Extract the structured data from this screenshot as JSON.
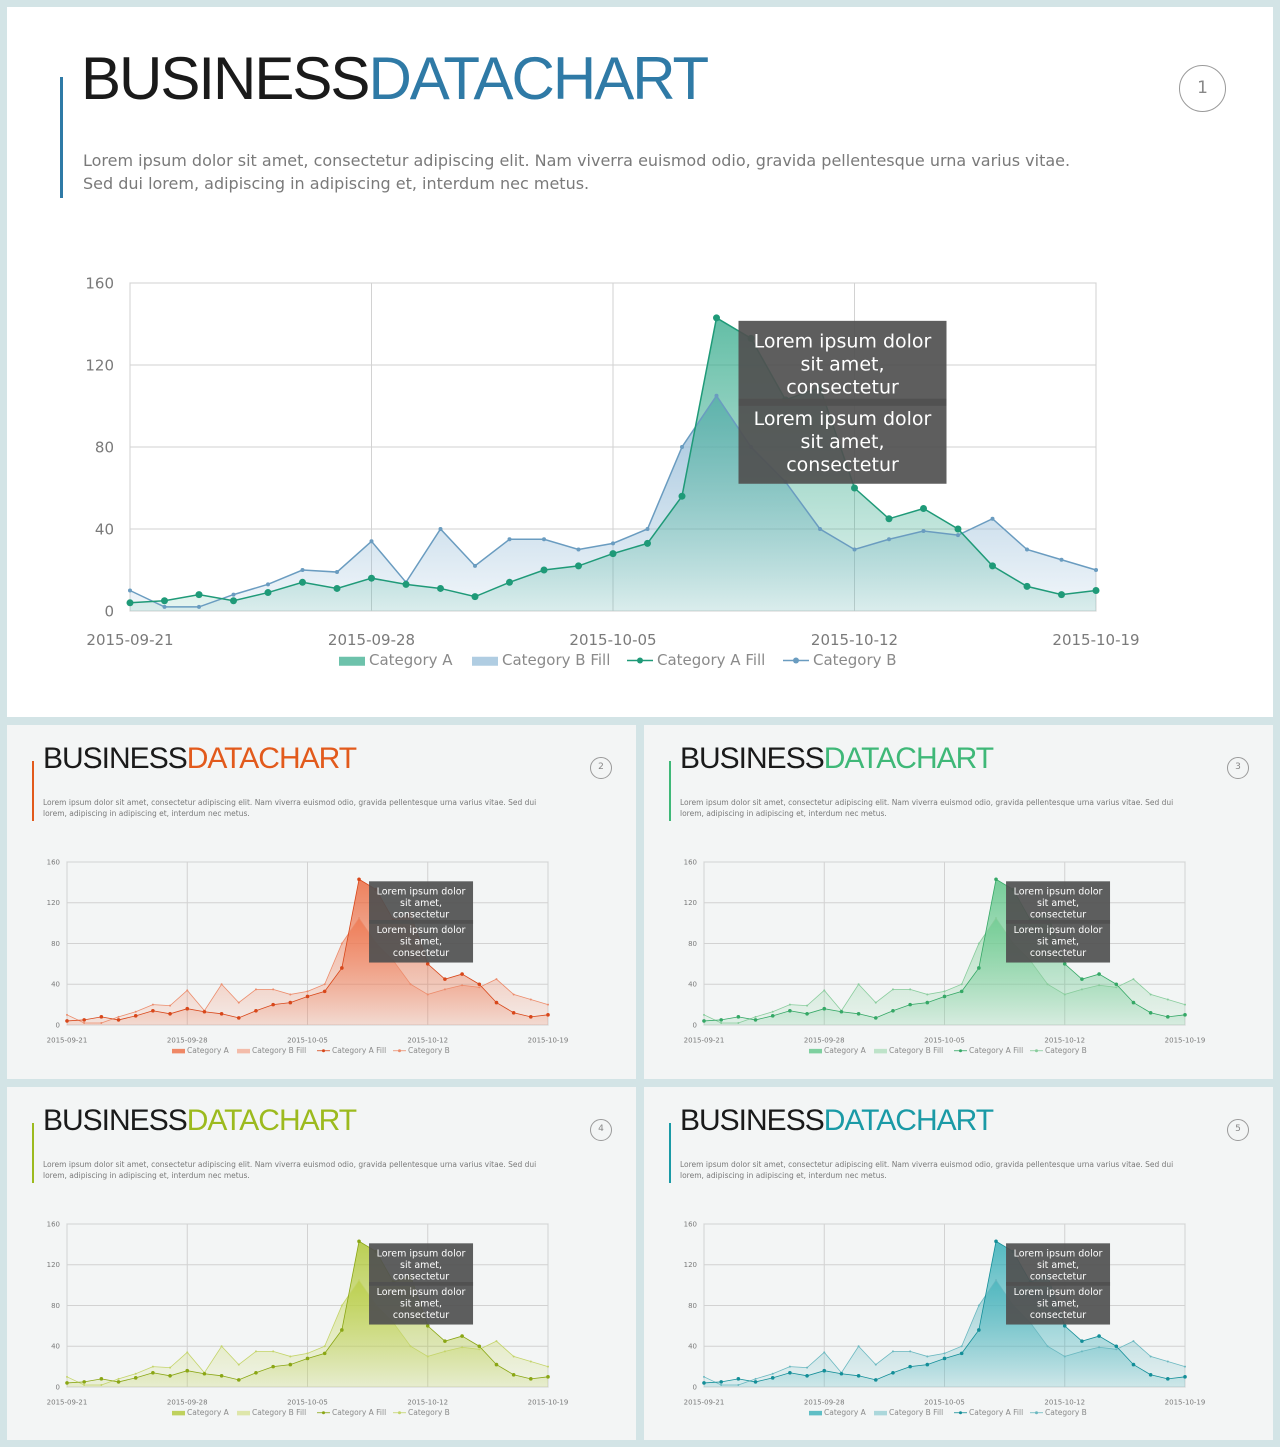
{
  "slides": [
    {
      "number": "1",
      "title_part1": "BUSINESS",
      "title_part2": "DATACHART",
      "description": "Lorem ipsum dolor sit amet, consectetur adipiscing elit. Nam viverra euismod odio, gravida pellentesque urna varius vitae. Sed dui lorem, adipiscing in adipiscing et, interdum nec metus.",
      "theme": {
        "accent": "#2f7aa6",
        "areaA": "#2fa888",
        "lineA": "#1f9a78",
        "areaB": "#8fb8d6",
        "lineB": "#6a9cc0"
      }
    },
    {
      "number": "2",
      "title_part1": "BUSINESS",
      "title_part2": "DATACHART",
      "description": "Lorem ipsum dolor sit amet, consectetur adipiscing elit. Nam viverra euismod odio, gravida pellentesque urna varius vitae. Sed dui lorem, adipiscing in adipiscing et, interdum nec metus.",
      "theme": {
        "accent": "#e25a1c",
        "areaA": "#ec5a2a",
        "lineA": "#d8471a",
        "areaB": "#f2a48a",
        "lineB": "#ec8c6c"
      }
    },
    {
      "number": "3",
      "title_part1": "BUSINESS",
      "title_part2": "DATACHART",
      "description": "Lorem ipsum dolor sit amet, consectetur adipiscing elit. Nam viverra euismod odio, gravida pellentesque urna varius vitae. Sed dui lorem, adipiscing in adipiscing et, interdum nec metus.",
      "theme": {
        "accent": "#3fb878",
        "areaA": "#4cc07a",
        "lineA": "#35a866",
        "areaB": "#a6dcb6",
        "lineB": "#88cc9c"
      }
    },
    {
      "number": "4",
      "title_part1": "BUSINESS",
      "title_part2": "DATACHART",
      "description": "Lorem ipsum dolor sit amet, consectetur adipiscing elit. Nam viverra euismod odio, gravida pellentesque urna varius vitae. Sed dui lorem, adipiscing in adipiscing et, interdum nec metus.",
      "theme": {
        "accent": "#9cba1e",
        "areaA": "#a8c21c",
        "lineA": "#8aa614",
        "areaB": "#d4e08a",
        "lineB": "#c4d46a"
      }
    },
    {
      "number": "5",
      "title_part1": "BUSINESS",
      "title_part2": "DATACHART",
      "description": "Lorem ipsum dolor sit amet, consectetur adipiscing elit. Nam viverra euismod odio, gravida pellentesque urna varius vitae. Sed dui lorem, adipiscing in adipiscing et, interdum nec metus.",
      "theme": {
        "accent": "#1a9aa6",
        "areaA": "#1ea6b0",
        "lineA": "#138e98",
        "areaB": "#8ccad0",
        "lineB": "#6ab8c0"
      }
    }
  ],
  "chart_data": {
    "type": "area",
    "x": [
      "2015-09-21",
      "2015-09-22",
      "2015-09-23",
      "2015-09-24",
      "2015-09-25",
      "2015-09-26",
      "2015-09-27",
      "2015-09-28",
      "2015-09-29",
      "2015-09-30",
      "2015-10-01",
      "2015-10-02",
      "2015-10-03",
      "2015-10-04",
      "2015-10-05",
      "2015-10-06",
      "2015-10-07",
      "2015-10-08",
      "2015-10-09",
      "2015-10-10",
      "2015-10-11",
      "2015-10-12",
      "2015-10-13",
      "2015-10-14",
      "2015-10-15",
      "2015-10-16",
      "2015-10-17",
      "2015-10-18",
      "2015-10-19"
    ],
    "x_ticks": [
      "2015-09-21",
      "2015-09-28",
      "2015-10-05",
      "2015-10-12",
      "2015-10-19"
    ],
    "y_ticks": [
      "0",
      "40",
      "80",
      "120",
      "160"
    ],
    "ylim": [
      0,
      160
    ],
    "series": [
      {
        "name": "Category A",
        "values": [
          4,
          5,
          8,
          5,
          9,
          14,
          11,
          16,
          13,
          11,
          7,
          14,
          20,
          22,
          28,
          33,
          56,
          143,
          133,
          103,
          109,
          60,
          45,
          50,
          40,
          22,
          12,
          8,
          10
        ]
      },
      {
        "name": "Category B",
        "values": [
          10,
          2,
          2,
          8,
          13,
          20,
          19,
          34,
          14,
          40,
          22,
          35,
          35,
          30,
          33,
          40,
          80,
          105,
          80,
          63,
          40,
          30,
          35,
          39,
          37,
          45,
          30,
          25,
          20
        ]
      }
    ],
    "legend": [
      "Category A",
      "Category B Fill",
      "Category A Fill",
      "Category B"
    ],
    "annotations": [
      "Lorem ipsum dolor sit amet, consectetur",
      "Lorem ipsum dolor sit amet, consectetur"
    ],
    "grid": true,
    "legend_position": "bottom"
  }
}
